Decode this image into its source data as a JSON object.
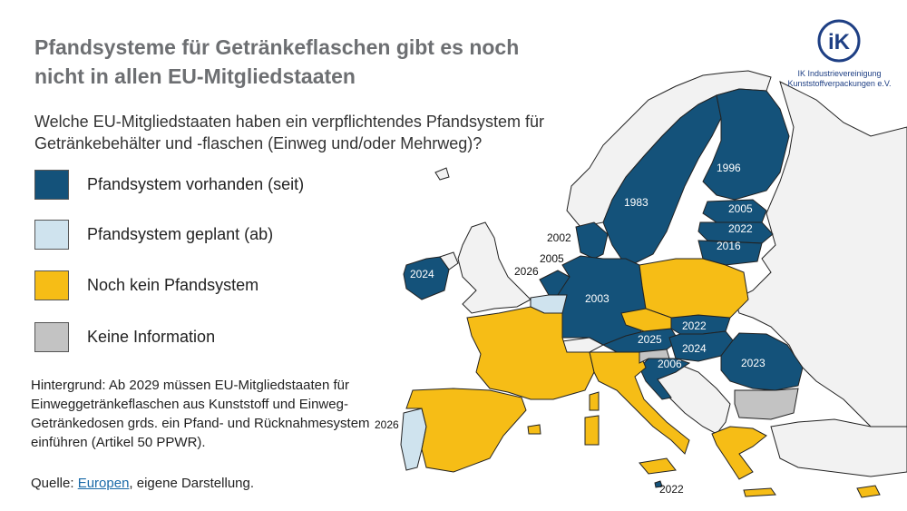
{
  "title": "Pfandsysteme für Getränkeflaschen gibt es noch nicht in allen EU-Mitgliedstaaten",
  "subtitle": "Welche EU-Mitgliedstaaten haben ein verpflichtendes Pfandsystem für Getränkebehälter und -flaschen (Einweg und/oder Mehrweg)?",
  "legend": [
    {
      "label": "Pfandsystem vorhanden (seit)",
      "color": "#14527a"
    },
    {
      "label": "Pfandsystem geplant (ab)",
      "color": "#cfe3ee"
    },
    {
      "label": "Noch kein Pfandsystem",
      "color": "#f6bd16"
    },
    {
      "label": "Keine Information",
      "color": "#c3c3c3"
    }
  ],
  "background_note": "Hintergrund: Ab 2029 müssen EU-Mitgliedstaaten für Einweggetränkeflaschen aus Kunststoff und Einweg-Getränkedosen grds. ein Pfand- und Rücknahmesystem einführen (Artikel 50 PPWR).",
  "source": {
    "prefix": "Quelle: ",
    "link": "Europen",
    "suffix": ", eigene Darstellung."
  },
  "logo": {
    "mark": "iK",
    "line1": "IK Industrievereinigung",
    "line2": "Kunststoffverpackungen e.V."
  },
  "colors": {
    "text_grey": "#6d6f72",
    "land_grey": "#f2f2f2"
  },
  "years": {
    "finland": "1996",
    "sweden": "1983",
    "estonia": "2005",
    "latvia": "2022",
    "lithuania": "2016",
    "denmark": "2002",
    "netherlands": "2005",
    "belgium": "2026",
    "ireland": "2024",
    "germany": "2003",
    "slovakia": "2022",
    "austria": "2025",
    "hungary": "2024",
    "croatia": "2006",
    "romania": "2023",
    "portugal": "2026",
    "malta": "2022"
  }
}
